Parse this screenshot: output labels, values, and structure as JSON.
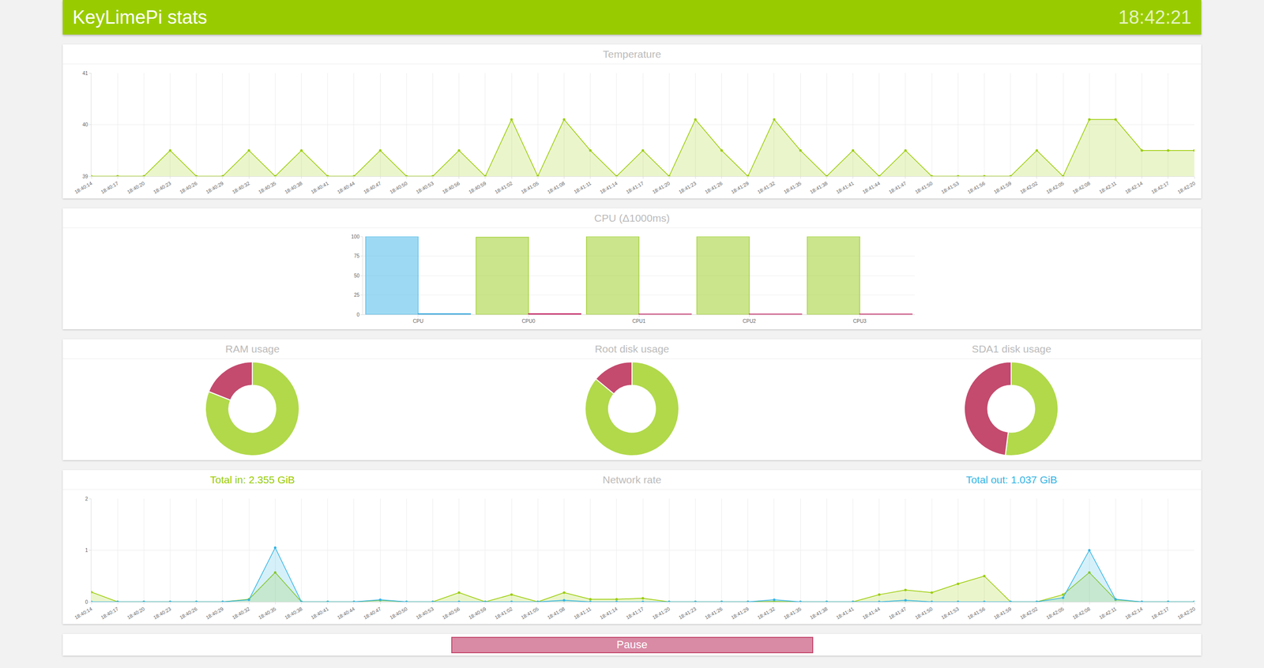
{
  "header": {
    "title": "KeyLimePi stats",
    "clock": "18:42:21"
  },
  "chart_data": [
    {
      "type": "area",
      "title": "Temperature",
      "categories": [
        "18:40:14",
        "18:40:17",
        "18:40:20",
        "18:40:23",
        "18:40:26",
        "18:40:29",
        "18:40:32",
        "18:40:35",
        "18:40:38",
        "18:40:41",
        "18:40:44",
        "18:40:47",
        "18:40:50",
        "18:40:53",
        "18:40:56",
        "18:40:59",
        "18:41:02",
        "18:41:05",
        "18:41:08",
        "18:41:11",
        "18:41:14",
        "18:41:17",
        "18:41:20",
        "18:41:23",
        "18:41:26",
        "18:41:29",
        "18:41:32",
        "18:41:35",
        "18:41:38",
        "18:41:41",
        "18:41:44",
        "18:41:47",
        "18:41:50",
        "18:41:53",
        "18:41:56",
        "18:41:59",
        "18:42:02",
        "18:42:05",
        "18:42:08",
        "18:42:11",
        "18:42:14",
        "18:42:17",
        "18:42:20"
      ],
      "series": [
        {
          "color": "#99cc00",
          "values": [
            39,
            39,
            39,
            39.5,
            39,
            39,
            39.5,
            39,
            39.5,
            39,
            39,
            39.5,
            39,
            39,
            39.5,
            39,
            40.1,
            39,
            40.1,
            39.5,
            39,
            39.5,
            39,
            40.1,
            39.5,
            39,
            40.1,
            39.5,
            39,
            39.5,
            39,
            39.5,
            39,
            39,
            39,
            39,
            39.5,
            39,
            40.1,
            40.1,
            39.5,
            39.5,
            39.5
          ]
        }
      ],
      "ylim": [
        39,
        41
      ],
      "yticks": [
        39,
        40,
        41
      ],
      "grid": true
    },
    {
      "type": "bar",
      "title": "CPU (Δ1000ms)",
      "categories": [
        "CPU",
        "CPU0",
        "CPU1",
        "CPU2",
        "CPU3"
      ],
      "series": [
        {
          "colors": [
            "#5bc0eb",
            "#a6d33d",
            "#a6d33d",
            "#a6d33d",
            "#a6d33d"
          ],
          "values": [
            100,
            99,
            100,
            100,
            100
          ]
        },
        {
          "colors": [
            "#2ea3dc",
            "#c2185b",
            "#c2185b",
            "#c2185b",
            "#c2185b"
          ],
          "values": [
            1,
            1,
            0.5,
            0.5,
            0.5
          ]
        }
      ],
      "ylim": [
        0,
        100
      ],
      "yticks": [
        0,
        25,
        50,
        75,
        100
      ],
      "grid": true
    },
    {
      "type": "pie",
      "title": "RAM usage",
      "values": [
        81,
        19
      ],
      "colors": [
        "#b1d94a",
        "#c44a6e"
      ]
    },
    {
      "type": "pie",
      "title": "Root disk usage",
      "values": [
        86,
        14
      ],
      "colors": [
        "#b1d94a",
        "#c44a6e"
      ]
    },
    {
      "type": "pie",
      "title": "SDA1 disk usage",
      "values": [
        52,
        48
      ],
      "colors": [
        "#b1d94a",
        "#c44a6e"
      ]
    },
    {
      "type": "area",
      "title": "Network rate",
      "annotations": [
        "Total in: 2.355 GiB",
        "Total out: 1.037 GiB"
      ],
      "categories": [
        "18:40:14",
        "18:40:17",
        "18:40:20",
        "18:40:23",
        "18:40:26",
        "18:40:29",
        "18:40:32",
        "18:40:35",
        "18:40:38",
        "18:40:41",
        "18:40:44",
        "18:40:47",
        "18:40:50",
        "18:40:53",
        "18:40:56",
        "18:40:59",
        "18:41:02",
        "18:41:05",
        "18:41:08",
        "18:41:11",
        "18:41:14",
        "18:41:17",
        "18:41:20",
        "18:41:23",
        "18:41:26",
        "18:41:29",
        "18:41:32",
        "18:41:35",
        "18:41:38",
        "18:41:41",
        "18:41:44",
        "18:41:47",
        "18:41:50",
        "18:41:53",
        "18:41:56",
        "18:41:59",
        "18:42:02",
        "18:42:05",
        "18:42:08",
        "18:42:11",
        "18:42:14",
        "18:42:17",
        "18:42:20"
      ],
      "series": [
        {
          "color": "#99cc00",
          "values": [
            0.19,
            0,
            0,
            0,
            0,
            0,
            0.05,
            0.57,
            0,
            0,
            0,
            0.03,
            0,
            0,
            0.18,
            0,
            0.14,
            0,
            0.18,
            0.05,
            0.05,
            0.07,
            0,
            0,
            0,
            0,
            0.01,
            0,
            0,
            0,
            0.14,
            0.23,
            0.18,
            0.35,
            0.5,
            0,
            0,
            0.14,
            0.57,
            0.04,
            0,
            0,
            0
          ]
        },
        {
          "color": "#33b5e5",
          "values": [
            0,
            0,
            0,
            0,
            0,
            0,
            0.04,
            1.05,
            0,
            0,
            0,
            0.04,
            0,
            0,
            0,
            0,
            0,
            0,
            0.03,
            0,
            0,
            0,
            0,
            0,
            0,
            0,
            0.04,
            0,
            0,
            0,
            0,
            0.03,
            0,
            0,
            0,
            0,
            0,
            0.08,
            1.0,
            0.05,
            0,
            0,
            0
          ]
        }
      ],
      "ylim": [
        0,
        2
      ],
      "yticks": [
        0,
        1,
        2
      ],
      "grid": true
    }
  ],
  "button": "Pause"
}
